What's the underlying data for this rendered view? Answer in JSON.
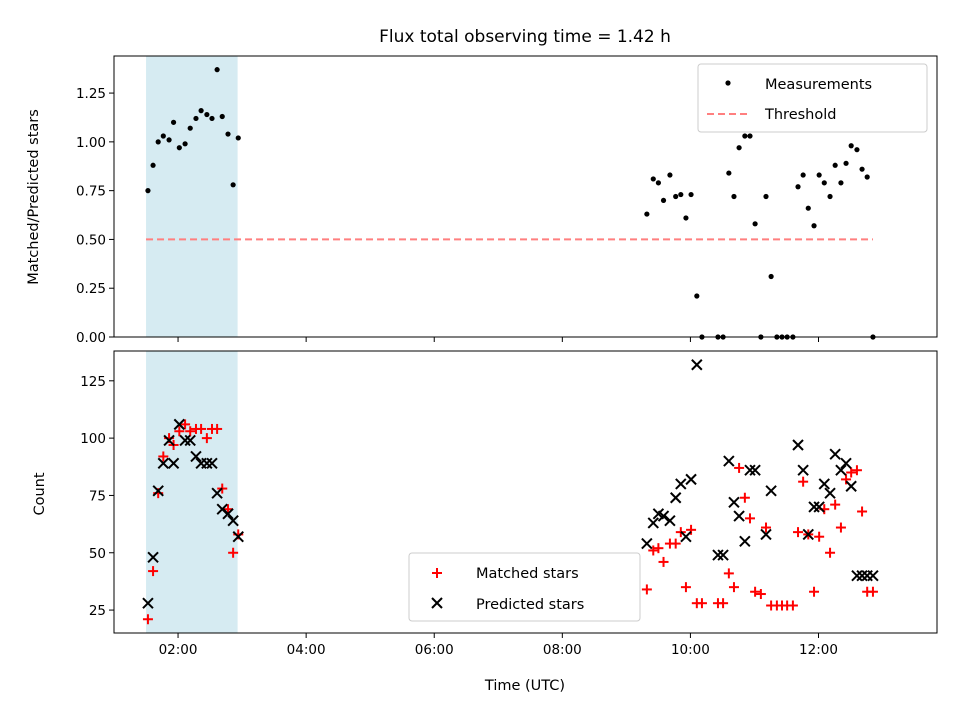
{
  "chart_data": [
    {
      "type": "scatter",
      "title": "Flux total observing time = 1.42 h",
      "xlabel": "",
      "ylabel": "Matched/Predicted stars",
      "ylim": [
        0,
        1.44
      ],
      "yticks": [
        0.0,
        0.25,
        0.5,
        0.75,
        1.0,
        1.25
      ],
      "ytick_labels": [
        "0.00",
        "0.25",
        "0.50",
        "0.75",
        "1.00",
        "1.25"
      ],
      "xlim_hours": [
        1.0,
        13.85
      ],
      "xtick_labels": [
        "02:00",
        "04:00",
        "06:00",
        "08:00",
        "10:00",
        "12:00"
      ],
      "shaded_span_hours": [
        1.5,
        2.93
      ],
      "shaded_color": "#add8e6",
      "legend_position": "top-right",
      "series": [
        {
          "name": "Measurements",
          "marker": "dot",
          "color": "#000000",
          "x_hours": [
            1.53,
            1.61,
            1.69,
            1.77,
            1.86,
            1.93,
            2.02,
            2.11,
            2.19,
            2.28,
            2.36,
            2.45,
            2.53,
            2.61,
            2.69,
            2.78,
            2.86,
            2.94,
            9.32,
            9.42,
            9.5,
            9.58,
            9.68,
            9.77,
            9.85,
            9.93,
            10.01,
            10.1,
            10.18,
            10.43,
            10.51,
            10.6,
            10.68,
            10.76,
            10.85,
            10.93,
            11.01,
            11.1,
            11.18,
            11.26,
            11.35,
            11.43,
            11.51,
            11.6,
            11.68,
            11.76,
            11.84,
            11.93,
            12.01,
            12.09,
            12.18,
            12.26,
            12.35,
            12.43,
            12.51,
            12.6,
            12.68,
            12.76,
            12.85
          ],
          "y": [
            0.75,
            0.88,
            1.0,
            1.03,
            1.01,
            1.1,
            0.97,
            0.99,
            1.07,
            1.12,
            1.16,
            1.14,
            1.12,
            1.37,
            1.13,
            1.04,
            0.78,
            1.02,
            0.63,
            0.81,
            0.79,
            0.7,
            0.83,
            0.72,
            0.73,
            0.61,
            0.73,
            0.21,
            0.0,
            0.0,
            0.0,
            0.84,
            0.72,
            0.97,
            1.03,
            1.03,
            0.58,
            0.0,
            0.72,
            0.31,
            0.0,
            0.0,
            0.0,
            0.0,
            0.77,
            0.83,
            0.66,
            0.57,
            0.83,
            0.79,
            0.72,
            0.88,
            0.79,
            0.89,
            0.98,
            0.96,
            0.86,
            0.82,
            0.0
          ]
        },
        {
          "name": "Threshold",
          "marker": "dashed-line",
          "color": "#ff7f7f",
          "x_hours": [
            1.5,
            12.85
          ],
          "y": [
            0.5,
            0.5
          ]
        }
      ]
    },
    {
      "type": "scatter",
      "title": "",
      "xlabel": "Time (UTC)",
      "ylabel": "Count",
      "ylim": [
        15,
        138
      ],
      "yticks": [
        25,
        50,
        75,
        100,
        125
      ],
      "ytick_labels": [
        "25",
        "50",
        "75",
        "100",
        "125"
      ],
      "xlim_hours": [
        1.0,
        13.85
      ],
      "xtick_labels": [
        "02:00",
        "04:00",
        "06:00",
        "08:00",
        "10:00",
        "12:00"
      ],
      "shaded_span_hours": [
        1.5,
        2.93
      ],
      "shaded_color": "#add8e6",
      "legend_position": "bottom-center",
      "series": [
        {
          "name": "Matched stars",
          "marker": "plus",
          "color": "#ff0000",
          "x_hours": [
            1.53,
            1.61,
            1.69,
            1.77,
            1.86,
            1.93,
            2.02,
            2.11,
            2.19,
            2.28,
            2.36,
            2.45,
            2.53,
            2.61,
            2.69,
            2.78,
            2.86,
            2.94,
            9.32,
            9.42,
            9.5,
            9.58,
            9.68,
            9.77,
            9.85,
            9.93,
            10.01,
            10.1,
            10.18,
            10.43,
            10.51,
            10.6,
            10.68,
            10.76,
            10.85,
            10.93,
            11.01,
            11.1,
            11.18,
            11.26,
            11.35,
            11.43,
            11.51,
            11.6,
            11.68,
            11.76,
            11.84,
            11.93,
            12.01,
            12.09,
            12.18,
            12.26,
            12.35,
            12.43,
            12.51,
            12.6,
            12.68,
            12.76,
            12.85
          ],
          "y": [
            21,
            42,
            76,
            92,
            100,
            97,
            103,
            106,
            103,
            104,
            104,
            100,
            104,
            104,
            78,
            69,
            50,
            58,
            34,
            51,
            52,
            46,
            54,
            54,
            59,
            35,
            60,
            28,
            28,
            28,
            28,
            41,
            35,
            87,
            74,
            65,
            33,
            32,
            61,
            27,
            27,
            27,
            27,
            27,
            59,
            81,
            58,
            33,
            57,
            69,
            50,
            71,
            61,
            82,
            85,
            86,
            68,
            33,
            33
          ]
        },
        {
          "name": "Predicted stars",
          "marker": "x",
          "color": "#000000",
          "x_hours": [
            1.53,
            1.61,
            1.69,
            1.77,
            1.86,
            1.93,
            2.02,
            2.11,
            2.19,
            2.28,
            2.36,
            2.45,
            2.53,
            2.61,
            2.69,
            2.78,
            2.86,
            2.94,
            9.32,
            9.42,
            9.5,
            9.58,
            9.68,
            9.77,
            9.85,
            9.93,
            10.01,
            10.1,
            10.43,
            10.51,
            10.6,
            10.68,
            10.76,
            10.85,
            10.93,
            11.01,
            11.18,
            11.26,
            11.68,
            11.76,
            11.84,
            11.93,
            12.01,
            12.09,
            12.18,
            12.26,
            12.35,
            12.43,
            12.51,
            12.6,
            12.68,
            12.76,
            12.85
          ],
          "y": [
            28,
            48,
            77,
            89,
            99,
            89,
            106,
            99,
            99,
            92,
            89,
            89,
            89,
            76,
            69,
            67,
            64,
            57,
            54,
            63,
            67,
            66,
            64,
            74,
            80,
            57,
            82,
            132,
            49,
            49,
            90,
            72,
            66,
            55,
            86,
            86,
            58,
            77,
            97,
            86,
            58,
            70,
            70,
            80,
            76,
            93,
            86,
            89,
            79,
            40,
            40,
            40,
            40
          ]
        }
      ]
    }
  ]
}
